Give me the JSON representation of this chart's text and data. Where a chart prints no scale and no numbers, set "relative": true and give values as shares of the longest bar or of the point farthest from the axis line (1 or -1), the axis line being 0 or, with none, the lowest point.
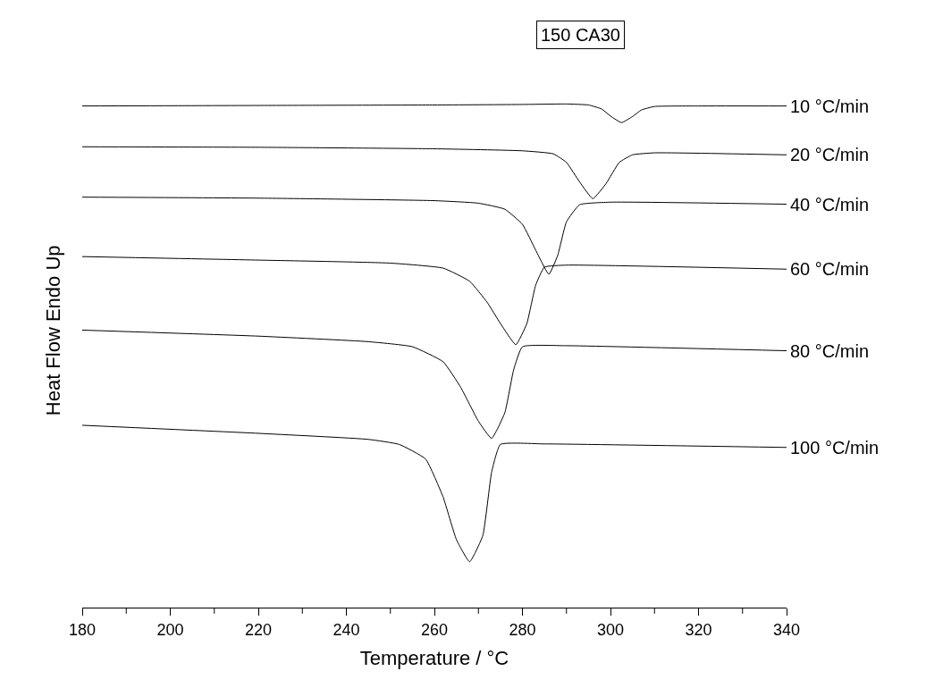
{
  "chart_data": {
    "type": "line",
    "relative": true,
    "xlabel": "Temperature / °C",
    "ylabel": "Heat Flow Endo Up",
    "xlim": [
      180,
      340
    ],
    "xticks": [
      180,
      {
        "value": 190,
        "label": null
      },
      200,
      {
        "value": 210,
        "label": null
      },
      220,
      {
        "value": 230,
        "label": null
      },
      240,
      {
        "value": 250,
        "label": null
      },
      260,
      {
        "value": 270,
        "label": null
      },
      280,
      {
        "value": 290,
        "label": null
      },
      300,
      {
        "value": 310,
        "label": null
      },
      320,
      {
        "value": 330,
        "label": null
      },
      340
    ],
    "tick_labels": "x",
    "legend": false,
    "marker": "none",
    "line_style": "solid",
    "annotations": [
      "150 CA30"
    ],
    "series": [
      {
        "name": "10 °C/min",
        "color": "#000000",
        "x": [
          180,
          220,
          260,
          280,
          290,
          295,
          298,
          300,
          302.5,
          305,
          307,
          310,
          320,
          340
        ],
        "values": [
          0.996,
          0.997,
          0.998,
          0.999,
          1.0,
          0.998,
          0.99,
          0.976,
          0.963,
          0.975,
          0.988,
          0.995,
          0.996,
          0.996
        ]
      },
      {
        "name": "20 °C/min",
        "color": "#000000",
        "x": [
          180,
          220,
          260,
          280,
          287,
          290,
          293,
          296,
          299,
          302,
          305,
          310,
          340
        ],
        "values": [
          0.915,
          0.914,
          0.911,
          0.907,
          0.901,
          0.884,
          0.845,
          0.812,
          0.842,
          0.884,
          0.899,
          0.903,
          0.899
        ]
      },
      {
        "name": "40 °C/min",
        "color": "#000000",
        "x": [
          180,
          220,
          260,
          270,
          276,
          280,
          283,
          286,
          288,
          290,
          293,
          300,
          340
        ],
        "values": [
          0.815,
          0.813,
          0.808,
          0.803,
          0.791,
          0.761,
          0.71,
          0.662,
          0.699,
          0.766,
          0.8,
          0.805,
          0.801
        ]
      },
      {
        "name": "60 °C/min",
        "color": "#000000",
        "x": [
          180,
          220,
          250,
          262,
          268,
          272,
          275,
          278.5,
          281,
          283,
          285,
          290,
          340
        ],
        "values": [
          0.697,
          0.69,
          0.684,
          0.674,
          0.648,
          0.606,
          0.564,
          0.522,
          0.564,
          0.64,
          0.676,
          0.68,
          0.672
        ]
      },
      {
        "name": "80 °C/min",
        "color": "#000000",
        "x": [
          180,
          220,
          245,
          255,
          262,
          266,
          270,
          273,
          276,
          278,
          280,
          290,
          340
        ],
        "values": [
          0.551,
          0.539,
          0.528,
          0.518,
          0.488,
          0.437,
          0.37,
          0.336,
          0.387,
          0.472,
          0.518,
          0.52,
          0.51
        ]
      },
      {
        "name": "100 °C/min",
        "color": "#000000",
        "x": [
          180,
          220,
          245,
          252,
          258,
          262,
          265,
          268,
          271,
          273,
          275,
          285,
          340
        ],
        "values": [
          0.362,
          0.346,
          0.334,
          0.324,
          0.295,
          0.219,
          0.135,
          0.091,
          0.143,
          0.269,
          0.324,
          0.325,
          0.318
        ]
      }
    ]
  }
}
